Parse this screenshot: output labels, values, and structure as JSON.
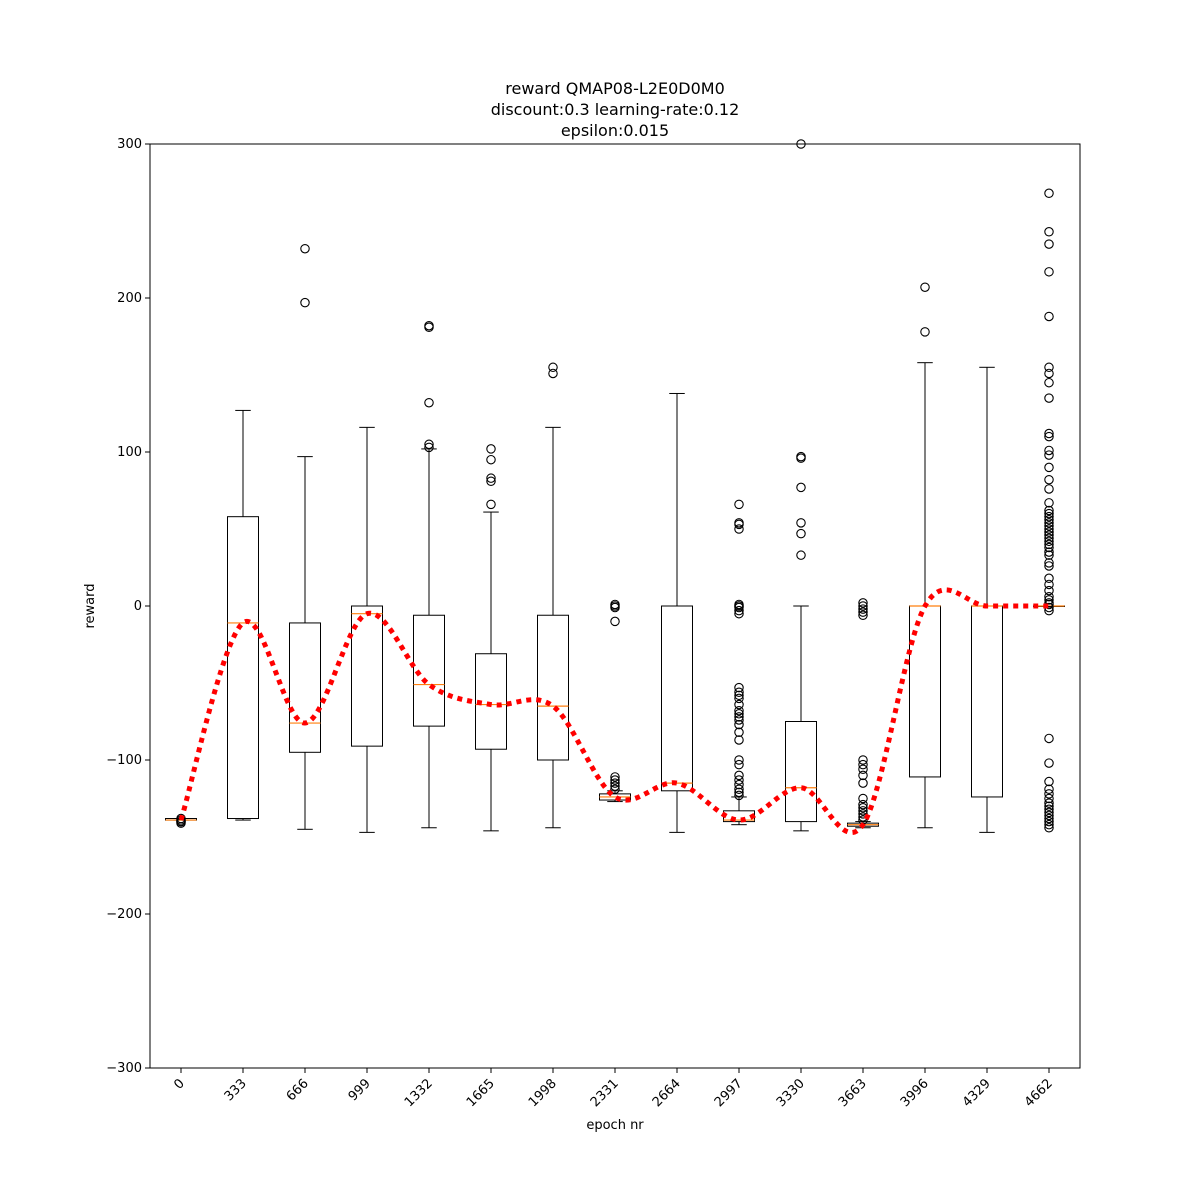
{
  "chart_data": {
    "type": "boxplot",
    "title_lines": [
      "reward QMAP08-L2E0D0M0",
      "discount:0.3 learning-rate:0.12",
      "epsilon:0.015"
    ],
    "xlabel": "epoch nr",
    "ylabel": "reward",
    "ylim": [
      -300,
      300
    ],
    "yticks": [
      -300,
      -200,
      -100,
      0,
      100,
      200,
      300
    ],
    "grid": false,
    "categories": [
      "0",
      "333",
      "666",
      "999",
      "1332",
      "1665",
      "1998",
      "2331",
      "2664",
      "2997",
      "3330",
      "3663",
      "3996",
      "4329",
      "4662"
    ],
    "boxes": [
      {
        "whislo": -139,
        "q1": -139,
        "med": -139,
        "q3": -138,
        "whishi": -138,
        "fliers": [
          -140,
          -141,
          -138,
          -139,
          -140
        ]
      },
      {
        "whislo": -139,
        "q1": -138,
        "med": -11,
        "q3": 58,
        "whishi": 127,
        "fliers": []
      },
      {
        "whislo": -145,
        "q1": -95,
        "med": -76,
        "q3": -11,
        "whishi": 97,
        "fliers": [
          197,
          232
        ]
      },
      {
        "whislo": -147,
        "q1": -91,
        "med": -5,
        "q3": 0,
        "whishi": 116,
        "fliers": []
      },
      {
        "whislo": -144,
        "q1": -78,
        "med": -51,
        "q3": -6,
        "whishi": 102,
        "fliers": [
          103,
          105,
          132,
          181,
          182
        ]
      },
      {
        "whislo": -146,
        "q1": -93,
        "med": -64,
        "q3": -31,
        "whishi": 61,
        "fliers": [
          66,
          81,
          83,
          95,
          102
        ]
      },
      {
        "whislo": -144,
        "q1": -100,
        "med": -65,
        "q3": -6,
        "whishi": 116,
        "fliers": [
          151,
          155
        ]
      },
      {
        "whislo": -127,
        "q1": -126,
        "med": -124,
        "q3": -122,
        "whishi": -120,
        "fliers": [
          -119,
          -117,
          -115,
          -113,
          -111,
          -10,
          -1,
          0,
          1
        ]
      },
      {
        "whislo": -147,
        "q1": -120,
        "med": -115,
        "q3": 0,
        "whishi": 138,
        "fliers": []
      },
      {
        "whislo": -142,
        "q1": -140,
        "med": -139,
        "q3": -133,
        "whishi": -124,
        "fliers": [
          -123,
          -121,
          -119,
          -116,
          -113,
          -110,
          -103,
          -100,
          -87,
          -82,
          -77,
          -74,
          -72,
          -70,
          -68,
          -64,
          -60,
          -58,
          -56,
          -53,
          -5,
          -3,
          -1,
          0,
          0,
          1,
          50,
          53,
          54,
          66
        ]
      },
      {
        "whislo": -146,
        "q1": -140,
        "med": -118,
        "q3": -75,
        "whishi": 0,
        "fliers": [
          33,
          47,
          54,
          77,
          96,
          97,
          300
        ]
      },
      {
        "whislo": -144,
        "q1": -143,
        "med": -142,
        "q3": -141,
        "whishi": -140,
        "fliers": [
          -139,
          -137,
          -135,
          -133,
          -131,
          -129,
          -125,
          -115,
          -110,
          -106,
          -103,
          -100,
          -6,
          -4,
          -2,
          0,
          2
        ]
      },
      {
        "whislo": -144,
        "q1": -111,
        "med": 0,
        "q3": 0,
        "whishi": 158,
        "fliers": [
          178,
          207
        ]
      },
      {
        "whislo": -147,
        "q1": -124,
        "med": 0,
        "q3": 0,
        "whishi": 155,
        "fliers": []
      },
      {
        "whislo": 0,
        "q1": 0,
        "med": 0,
        "q3": 0,
        "whishi": 0,
        "fliers": [
          -144,
          -142,
          -140,
          -138,
          -136,
          -134,
          -132,
          -130,
          -128,
          -125,
          -122,
          -119,
          -114,
          -102,
          -86,
          -3,
          -1,
          1,
          2,
          4,
          6,
          10,
          14,
          18,
          26,
          28,
          33,
          35,
          38,
          40,
          42,
          44,
          46,
          48,
          50,
          52,
          54,
          56,
          58,
          60,
          62,
          67,
          76,
          82,
          90,
          98,
          101,
          110,
          112,
          135,
          145,
          151,
          155,
          188,
          217,
          235,
          243,
          268
        ]
      }
    ],
    "median_line": {
      "color": "#ff0000",
      "style": "dotted",
      "values": [
        -139,
        -11,
        -76,
        -5,
        -51,
        -64,
        -65,
        -124,
        -115,
        -139,
        -118,
        -142,
        0,
        0,
        0
      ]
    },
    "colors": {
      "box": "#000000",
      "median": "#ff7f0e",
      "trend": "#ff0000"
    }
  }
}
